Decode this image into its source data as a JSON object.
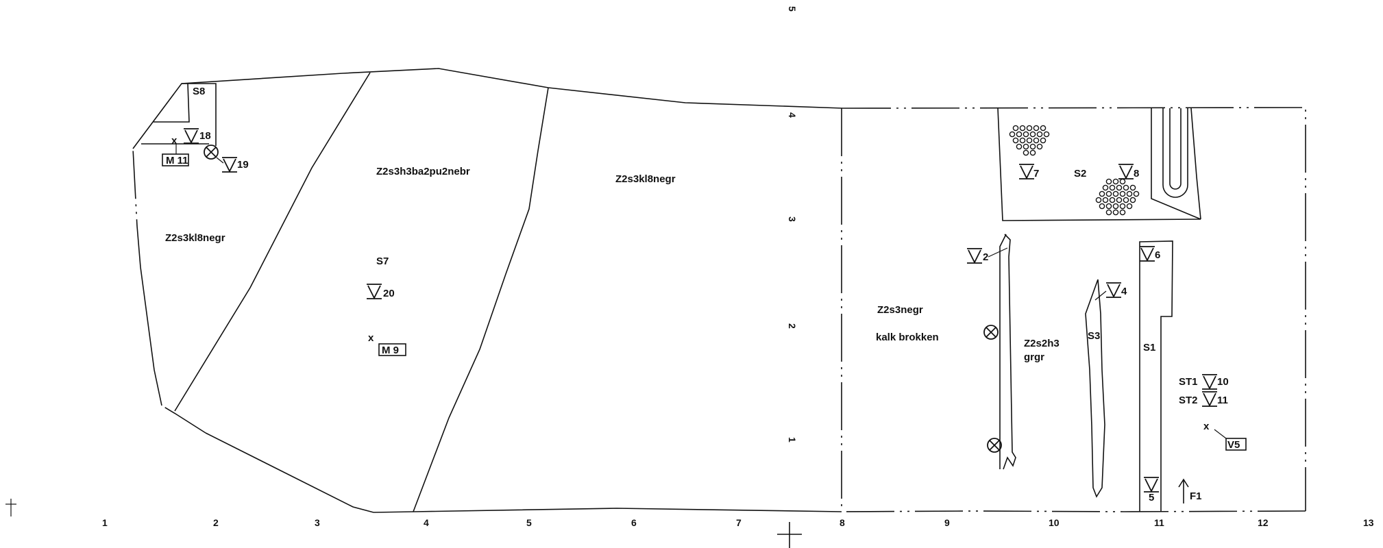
{
  "x_axis_ticks": [
    "1",
    "2",
    "3",
    "4",
    "5",
    "6",
    "7",
    "8",
    "9",
    "10",
    "11",
    "12",
    "13"
  ],
  "y_axis_ticks": [
    "1",
    "2",
    "3",
    "4",
    "5"
  ],
  "soil_labels": {
    "west": "Z2s3kl8negr",
    "middle": "Z2s3h3ba2pu2nebr",
    "center": "Z2s3kl8negr",
    "east_line1": "Z2s3negr",
    "east_line2": "kalk brokken",
    "strip_line1": "Z2s2h3",
    "strip_line2": "grgr"
  },
  "features": {
    "s8": "S8",
    "s7": "S7",
    "s2": "S2",
    "s3": "S3",
    "s1": "S1",
    "st1": "ST1",
    "st2": "ST2",
    "f1": "F1"
  },
  "find_numbers": {
    "v18": "18",
    "v19": "19",
    "v20": "20",
    "v7": "7",
    "v8": "8",
    "v2": "2",
    "v4": "4",
    "v6": "6",
    "v10": "10",
    "v11": "11",
    "v5": "5"
  },
  "sample_boxes": {
    "m11": "M 11",
    "m9": "M 9",
    "v5_box": "V5"
  },
  "marker_glyph": "x"
}
